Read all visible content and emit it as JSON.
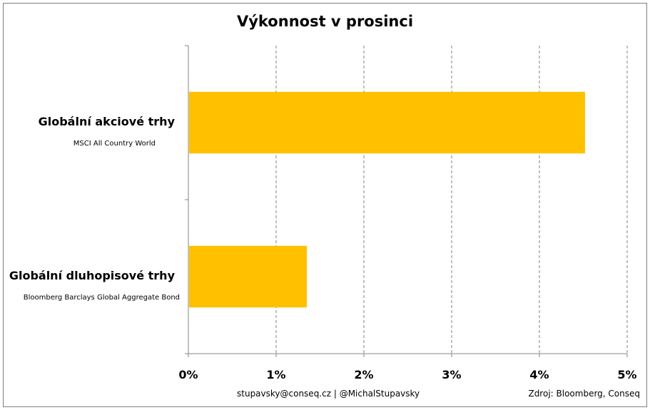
{
  "chart_data": {
    "type": "bar",
    "orientation": "horizontal",
    "title": "Výkonnost v prosinci",
    "categories": [
      "Globální akciové trhy",
      "Globální dluhopisové trhy"
    ],
    "category_subtitles": [
      "MSCI All Country World",
      "Bloomberg Barclays Global Aggregate Bond"
    ],
    "values": [
      4.52,
      1.35
    ],
    "xlim": [
      0,
      5
    ],
    "x_ticks": [
      0,
      1,
      2,
      3,
      4,
      5
    ],
    "x_tick_labels": [
      "0%",
      "1%",
      "2%",
      "3%",
      "4%",
      "5%"
    ],
    "xlabel": "",
    "ylabel": "",
    "grid": "vertical-dashed",
    "bar_color": "#FFC000"
  },
  "footer": {
    "contact": "stupavsky@conseq.cz  |  @MichalStupavsky",
    "source": "Zdroj: Bloomberg, Conseq"
  }
}
